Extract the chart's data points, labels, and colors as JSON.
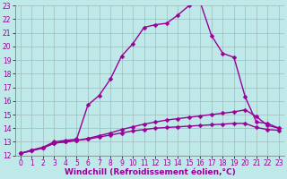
{
  "xlabel": "Windchill (Refroidissement éolien,°C)",
  "background_color": "#bfe8e8",
  "grid_color": "#9fbcbc",
  "line_color": "#990099",
  "xlim": [
    -0.5,
    23.5
  ],
  "ylim": [
    12,
    23
  ],
  "xticks": [
    0,
    1,
    2,
    3,
    4,
    5,
    6,
    7,
    8,
    9,
    10,
    11,
    12,
    13,
    14,
    15,
    16,
    17,
    18,
    19,
    20,
    21,
    22,
    23
  ],
  "yticks": [
    12,
    13,
    14,
    15,
    16,
    17,
    18,
    19,
    20,
    21,
    22,
    23
  ],
  "line1_x": [
    0,
    1,
    2,
    3,
    4,
    5,
    6,
    7,
    8,
    9,
    10,
    11,
    12,
    13,
    14,
    15,
    16,
    17,
    18,
    19,
    20,
    21,
    22,
    23
  ],
  "line1_y": [
    12.15,
    12.35,
    12.55,
    12.9,
    13.0,
    13.1,
    13.2,
    13.35,
    13.5,
    13.65,
    13.8,
    13.9,
    14.0,
    14.05,
    14.1,
    14.15,
    14.2,
    14.25,
    14.3,
    14.35,
    14.35,
    14.05,
    13.9,
    13.85
  ],
  "line2_x": [
    0,
    1,
    2,
    3,
    4,
    5,
    6,
    7,
    8,
    9,
    10,
    11,
    12,
    13,
    14,
    15,
    16,
    17,
    18,
    19,
    20,
    21,
    22,
    23
  ],
  "line2_y": [
    12.15,
    12.35,
    12.55,
    12.9,
    13.0,
    13.1,
    13.25,
    13.45,
    13.65,
    13.9,
    14.1,
    14.3,
    14.45,
    14.6,
    14.7,
    14.8,
    14.9,
    15.0,
    15.1,
    15.2,
    15.35,
    14.85,
    14.2,
    14.0
  ],
  "line3_x": [
    0,
    1,
    2,
    3,
    4,
    5,
    6,
    7,
    8,
    9,
    10,
    11,
    12,
    13,
    14,
    15,
    16,
    17,
    18,
    19,
    20,
    21,
    22,
    23
  ],
  "line3_y": [
    12.15,
    12.4,
    12.6,
    13.0,
    13.1,
    13.2,
    15.7,
    16.4,
    17.6,
    19.3,
    20.2,
    21.4,
    21.6,
    21.7,
    22.3,
    23.0,
    23.25,
    20.8,
    19.5,
    19.2,
    16.3,
    14.45,
    14.35,
    14.0
  ],
  "marker": "D",
  "marker_size": 2.5,
  "line_width": 1.0,
  "tick_fontsize": 5.5,
  "label_fontsize": 6.5
}
